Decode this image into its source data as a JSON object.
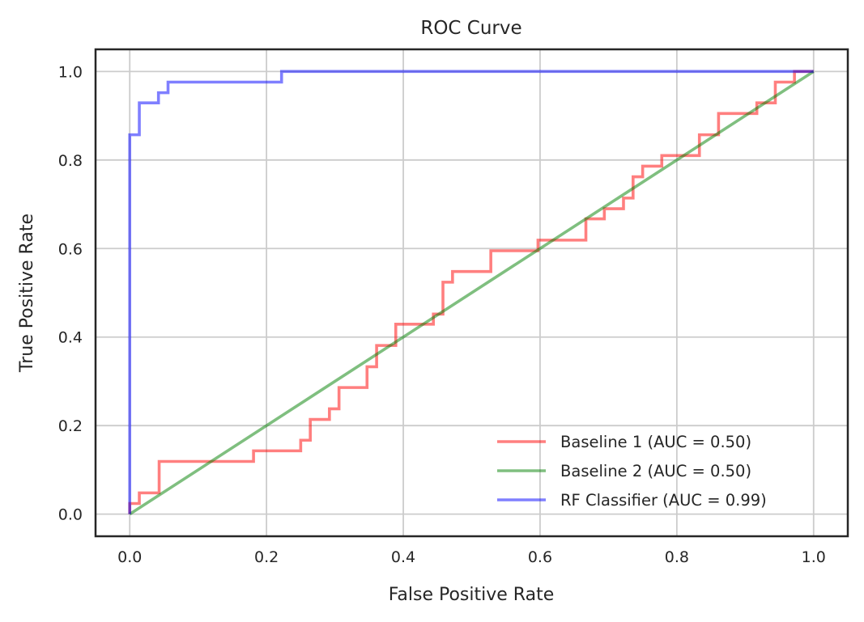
{
  "chart_data": {
    "type": "line",
    "title": "ROC Curve",
    "xlabel": "False Positive Rate",
    "ylabel": "True Positive Rate",
    "xlim": [
      -0.05,
      1.05
    ],
    "ylim": [
      -0.05,
      1.05
    ],
    "grid": true,
    "legend_position": "lower-right",
    "x_ticks": [
      "0.0",
      "0.2",
      "0.4",
      "0.6",
      "0.8",
      "1.0"
    ],
    "y_ticks": [
      "0.0",
      "0.2",
      "0.4",
      "0.6",
      "0.8",
      "1.0"
    ],
    "x_tick_values": [
      0.0,
      0.2,
      0.4,
      0.6,
      0.8,
      1.0
    ],
    "y_tick_values": [
      0.0,
      0.2,
      0.4,
      0.6,
      0.8,
      1.0
    ],
    "series": [
      {
        "name": "Baseline 1 (AUC = 0.50)",
        "color": "#ff0000",
        "x": [
          0.0,
          0.0,
          0.014,
          0.014,
          0.043,
          0.043,
          0.181,
          0.181,
          0.25,
          0.25,
          0.264,
          0.264,
          0.292,
          0.292,
          0.306,
          0.306,
          0.347,
          0.347,
          0.361,
          0.361,
          0.389,
          0.389,
          0.444,
          0.444,
          0.458,
          0.458,
          0.472,
          0.472,
          0.528,
          0.528,
          0.597,
          0.597,
          0.667,
          0.667,
          0.694,
          0.694,
          0.722,
          0.722,
          0.736,
          0.736,
          0.75,
          0.75,
          0.778,
          0.778,
          0.833,
          0.833,
          0.861,
          0.861,
          0.917,
          0.917,
          0.944,
          0.944,
          0.972,
          0.972,
          1.0
        ],
        "y": [
          0.0,
          0.024,
          0.024,
          0.048,
          0.048,
          0.119,
          0.119,
          0.143,
          0.143,
          0.167,
          0.167,
          0.214,
          0.214,
          0.238,
          0.238,
          0.286,
          0.286,
          0.333,
          0.333,
          0.381,
          0.381,
          0.429,
          0.429,
          0.452,
          0.452,
          0.524,
          0.524,
          0.548,
          0.548,
          0.595,
          0.595,
          0.619,
          0.619,
          0.667,
          0.667,
          0.69,
          0.69,
          0.714,
          0.714,
          0.762,
          0.762,
          0.786,
          0.786,
          0.81,
          0.81,
          0.857,
          0.857,
          0.905,
          0.905,
          0.929,
          0.929,
          0.976,
          0.976,
          1.0,
          1.0
        ]
      },
      {
        "name": "Baseline 2 (AUC = 0.50)",
        "color": "#008000",
        "x": [
          0.0,
          1.0
        ],
        "y": [
          0.0,
          1.0
        ]
      },
      {
        "name": "RF Classifier (AUC = 0.99)",
        "color": "#0000ff",
        "x": [
          0.0,
          0.0,
          0.0,
          0.014,
          0.014,
          0.042,
          0.042,
          0.056,
          0.056,
          0.222,
          0.222,
          1.0
        ],
        "y": [
          0.0,
          0.024,
          0.857,
          0.857,
          0.929,
          0.929,
          0.952,
          0.952,
          0.976,
          0.976,
          1.0,
          1.0
        ]
      }
    ]
  }
}
